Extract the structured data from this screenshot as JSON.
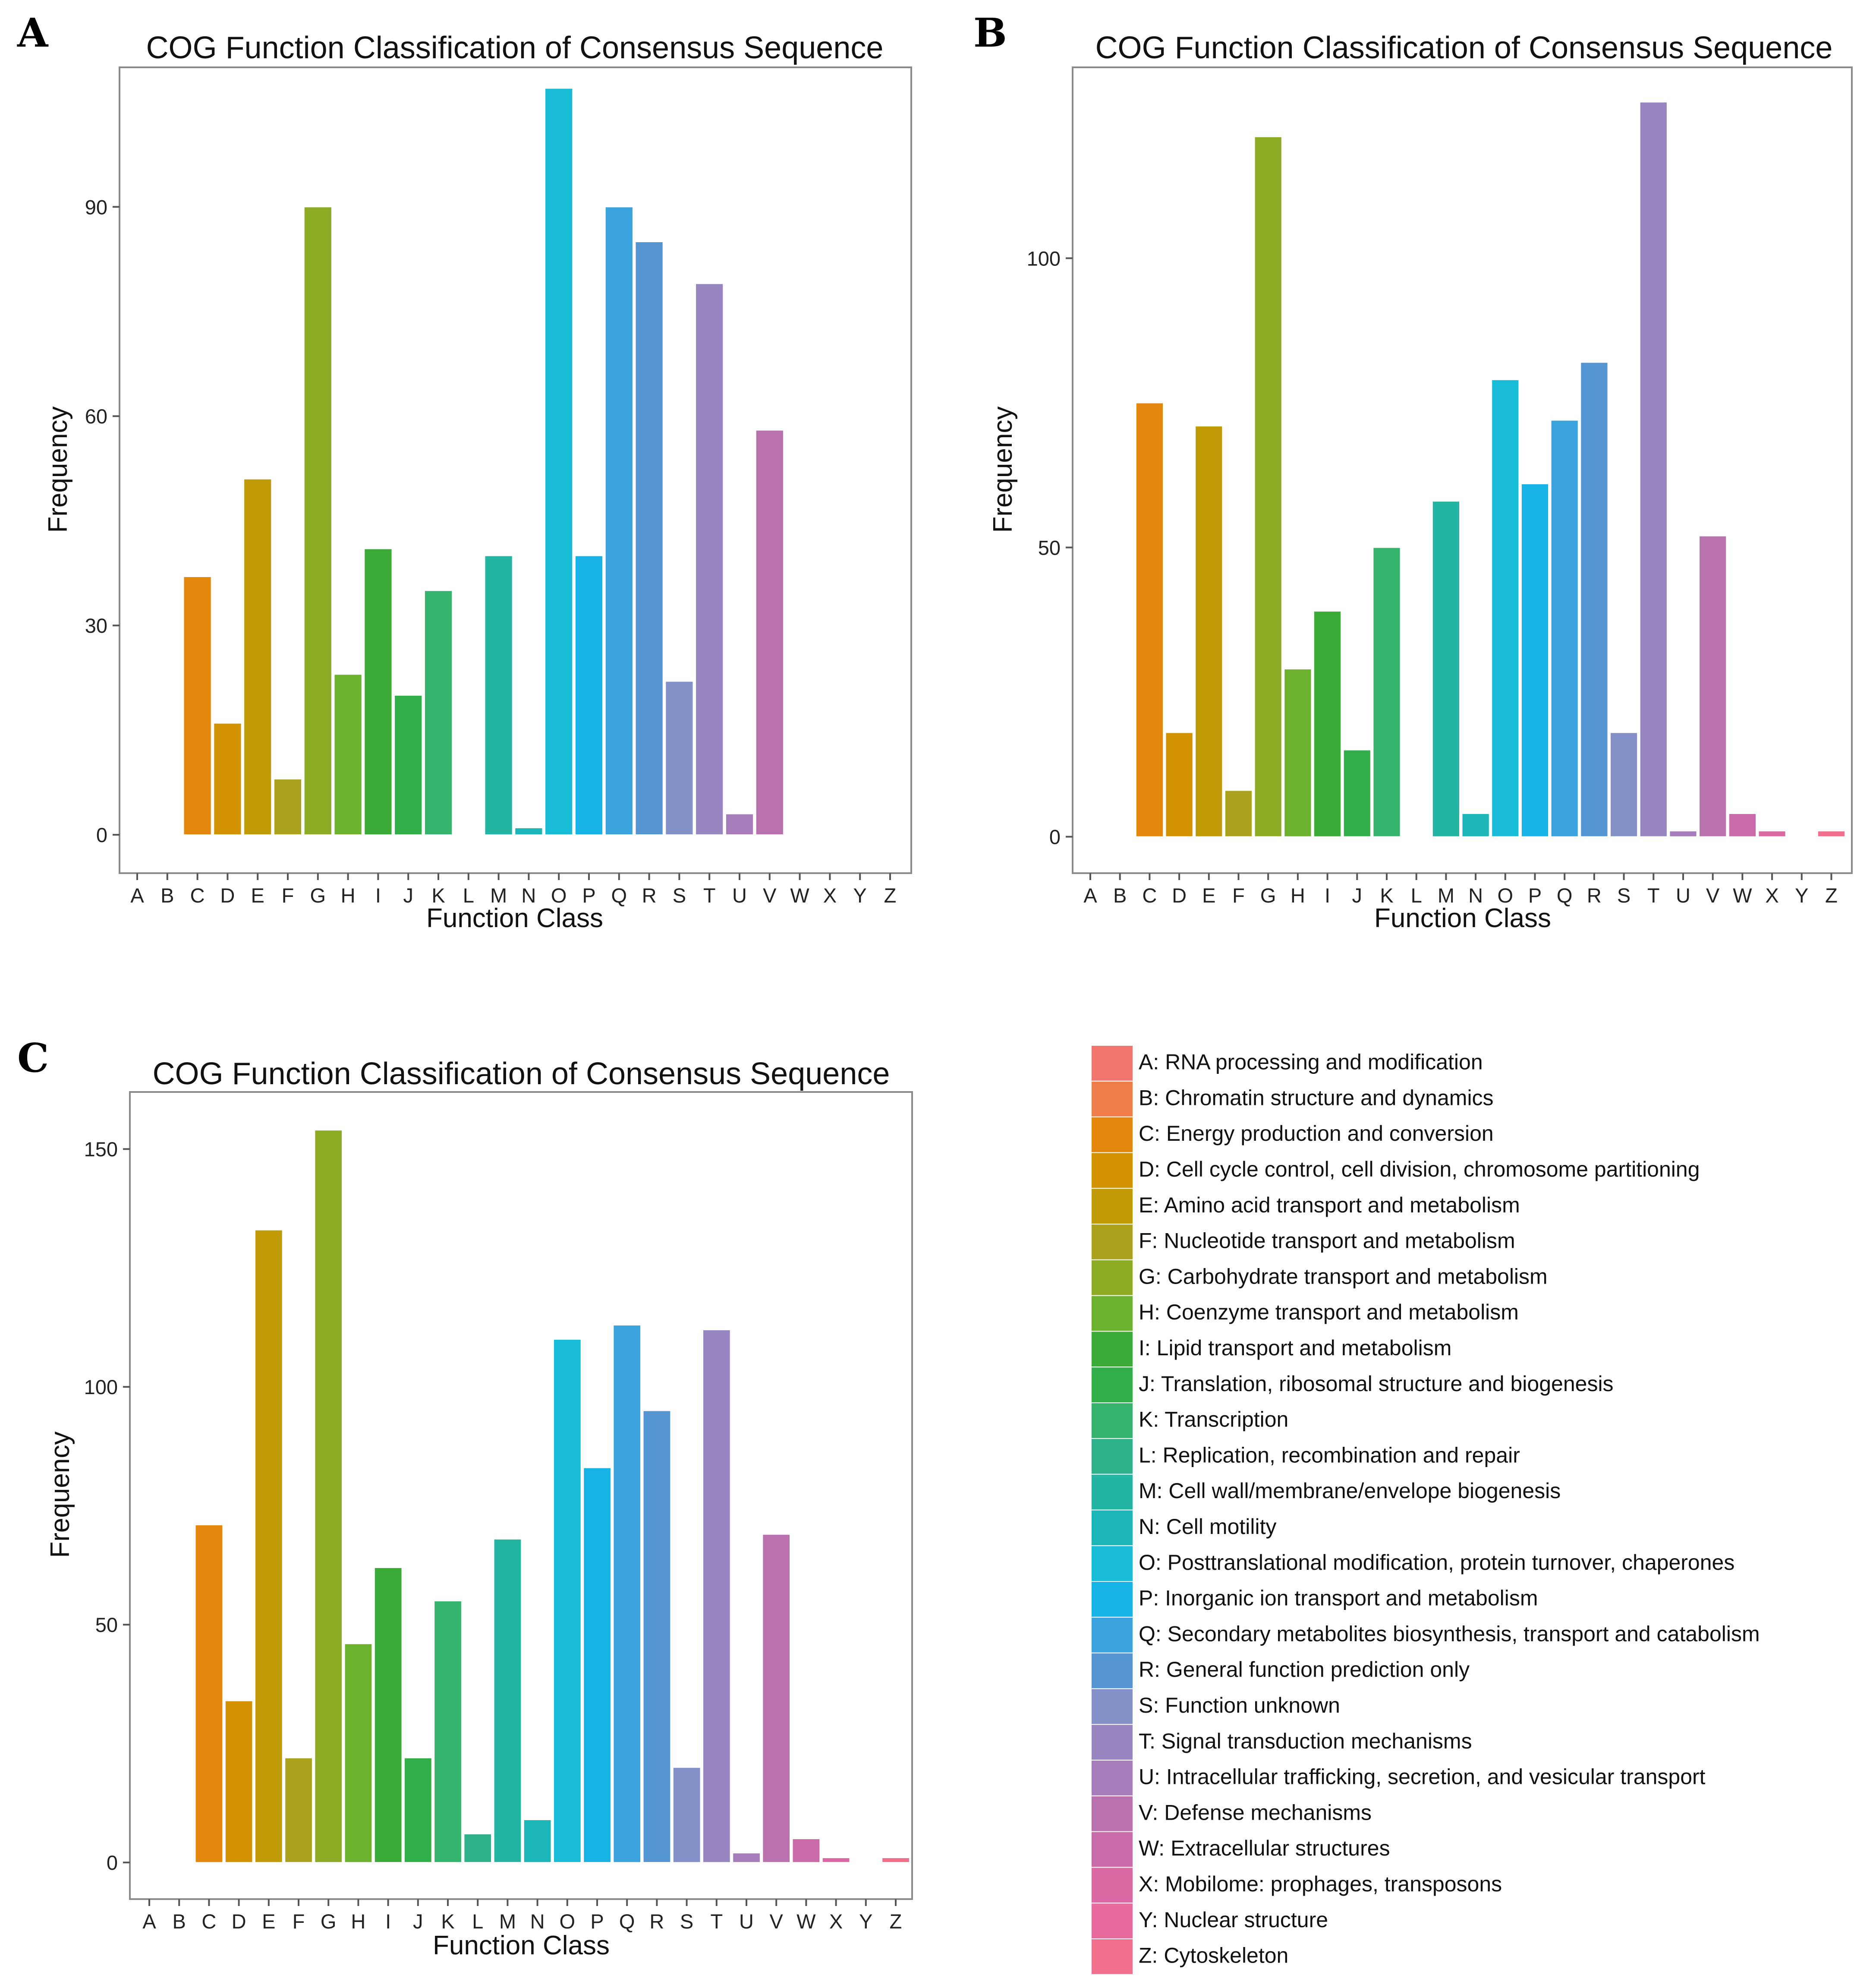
{
  "chart_data": [
    {
      "panel_label": "A",
      "type": "bar",
      "title": "COG Function Classification of Consensus Sequence",
      "xlabel": "Function Class",
      "ylabel": "Frequency",
      "ylim": [
        -5.5,
        110
      ],
      "yticks": [
        0,
        30,
        60,
        90
      ],
      "categories": [
        "A",
        "B",
        "C",
        "D",
        "E",
        "F",
        "G",
        "H",
        "I",
        "J",
        "K",
        "L",
        "M",
        "N",
        "O",
        "P",
        "Q",
        "R",
        "S",
        "T",
        "U",
        "V",
        "W",
        "X",
        "Y",
        "Z"
      ],
      "values": [
        0,
        0,
        37,
        16,
        51,
        8,
        90,
        23,
        41,
        20,
        35,
        0,
        40,
        1,
        107,
        40,
        90,
        85,
        22,
        79,
        3,
        58,
        0,
        0,
        0,
        0
      ]
    },
    {
      "panel_label": "B",
      "type": "bar",
      "title": "COG Function Classification of Consensus Sequence",
      "xlabel": "Function Class",
      "ylabel": "Frequency",
      "ylim": [
        -6.3,
        133
      ],
      "yticks": [
        0,
        50,
        100
      ],
      "categories": [
        "A",
        "B",
        "C",
        "D",
        "E",
        "F",
        "G",
        "H",
        "I",
        "J",
        "K",
        "L",
        "M",
        "N",
        "O",
        "P",
        "Q",
        "R",
        "S",
        "T",
        "U",
        "V",
        "W",
        "X",
        "Y",
        "Z"
      ],
      "values": [
        0,
        0,
        75,
        18,
        71,
        8,
        121,
        29,
        39,
        15,
        50,
        0,
        58,
        4,
        79,
        61,
        72,
        82,
        18,
        127,
        1,
        52,
        4,
        1,
        0,
        1
      ]
    },
    {
      "panel_label": "C",
      "type": "bar",
      "title": "COG Function Classification of Consensus Sequence",
      "xlabel": "Function Class",
      "ylabel": "Frequency",
      "ylim": [
        -7.7,
        162
      ],
      "yticks": [
        0,
        50,
        100,
        150
      ],
      "categories": [
        "A",
        "B",
        "C",
        "D",
        "E",
        "F",
        "G",
        "H",
        "I",
        "J",
        "K",
        "L",
        "M",
        "N",
        "O",
        "P",
        "Q",
        "R",
        "S",
        "T",
        "U",
        "V",
        "W",
        "X",
        "Y",
        "Z"
      ],
      "values": [
        0,
        0,
        71,
        34,
        133,
        22,
        154,
        46,
        62,
        22,
        55,
        6,
        68,
        9,
        110,
        83,
        113,
        95,
        20,
        112,
        2,
        69,
        5,
        1,
        0,
        1
      ]
    }
  ],
  "legend": {
    "items": [
      {
        "code": "A",
        "label": "A: RNA processing and modification",
        "color": "#F2756D"
      },
      {
        "code": "B",
        "label": "B: Chromatin structure and dynamics",
        "color": "#EE7D49"
      },
      {
        "code": "C",
        "label": "C: Energy production and conversion",
        "color": "#E3870E"
      },
      {
        "code": "D",
        "label": "D: Cell cycle control, cell division, chromosome partitioning",
        "color": "#D39200"
      },
      {
        "code": "E",
        "label": "E: Amino acid transport and metabolism",
        "color": "#C09B07"
      },
      {
        "code": "F",
        "label": "F: Nucleotide transport and metabolism",
        "color": "#ABA21E"
      },
      {
        "code": "G",
        "label": "G: Carbohydrate transport and metabolism",
        "color": "#8DAB25"
      },
      {
        "code": "H",
        "label": "H: Coenzyme transport and metabolism",
        "color": "#6CB22F"
      },
      {
        "code": "I",
        "label": "I: Lipid transport and metabolism",
        "color": "#3AAB36"
      },
      {
        "code": "J",
        "label": "J: Translation, ribosomal structure and biogenesis",
        "color": "#33AF4A"
      },
      {
        "code": "K",
        "label": "K: Transcription",
        "color": "#35B46E"
      },
      {
        "code": "L",
        "label": "L: Replication, recombination and repair",
        "color": "#2DB28C"
      },
      {
        "code": "M",
        "label": "M: Cell wall/membrane/envelope biogenesis",
        "color": "#23B5A1"
      },
      {
        "code": "N",
        "label": "N: Cell motility",
        "color": "#1CB6B8"
      },
      {
        "code": "O",
        "label": "O: Posttranslational modification, protein turnover, chaperones",
        "color": "#19BCD6"
      },
      {
        "code": "P",
        "label": "P: Inorganic ion transport and metabolism",
        "color": "#17B3E6"
      },
      {
        "code": "Q",
        "label": "Q: Secondary metabolites biosynthesis, transport and catabolism",
        "color": "#3BA3DD"
      },
      {
        "code": "R",
        "label": "R: General function prediction only",
        "color": "#5595D2"
      },
      {
        "code": "S",
        "label": "S: Function unknown",
        "color": "#8490C8"
      },
      {
        "code": "T",
        "label": "T: Signal transduction mechanisms",
        "color": "#9786C0"
      },
      {
        "code": "U",
        "label": "U: Intracellular trafficking, secretion, and vesicular transport",
        "color": "#A67CBA"
      },
      {
        "code": "V",
        "label": "V: Defense mechanisms",
        "color": "#B972AE"
      },
      {
        "code": "W",
        "label": "W: Extracellular structures",
        "color": "#C96BA9"
      },
      {
        "code": "X",
        "label": "X: Mobilome: prophages, transposons",
        "color": "#DA68A2"
      },
      {
        "code": "Y",
        "label": "Y: Nuclear structure",
        "color": "#E76B9C"
      },
      {
        "code": "Z",
        "label": "Z: Cytoskeleton",
        "color": "#EF6F8C"
      }
    ]
  }
}
